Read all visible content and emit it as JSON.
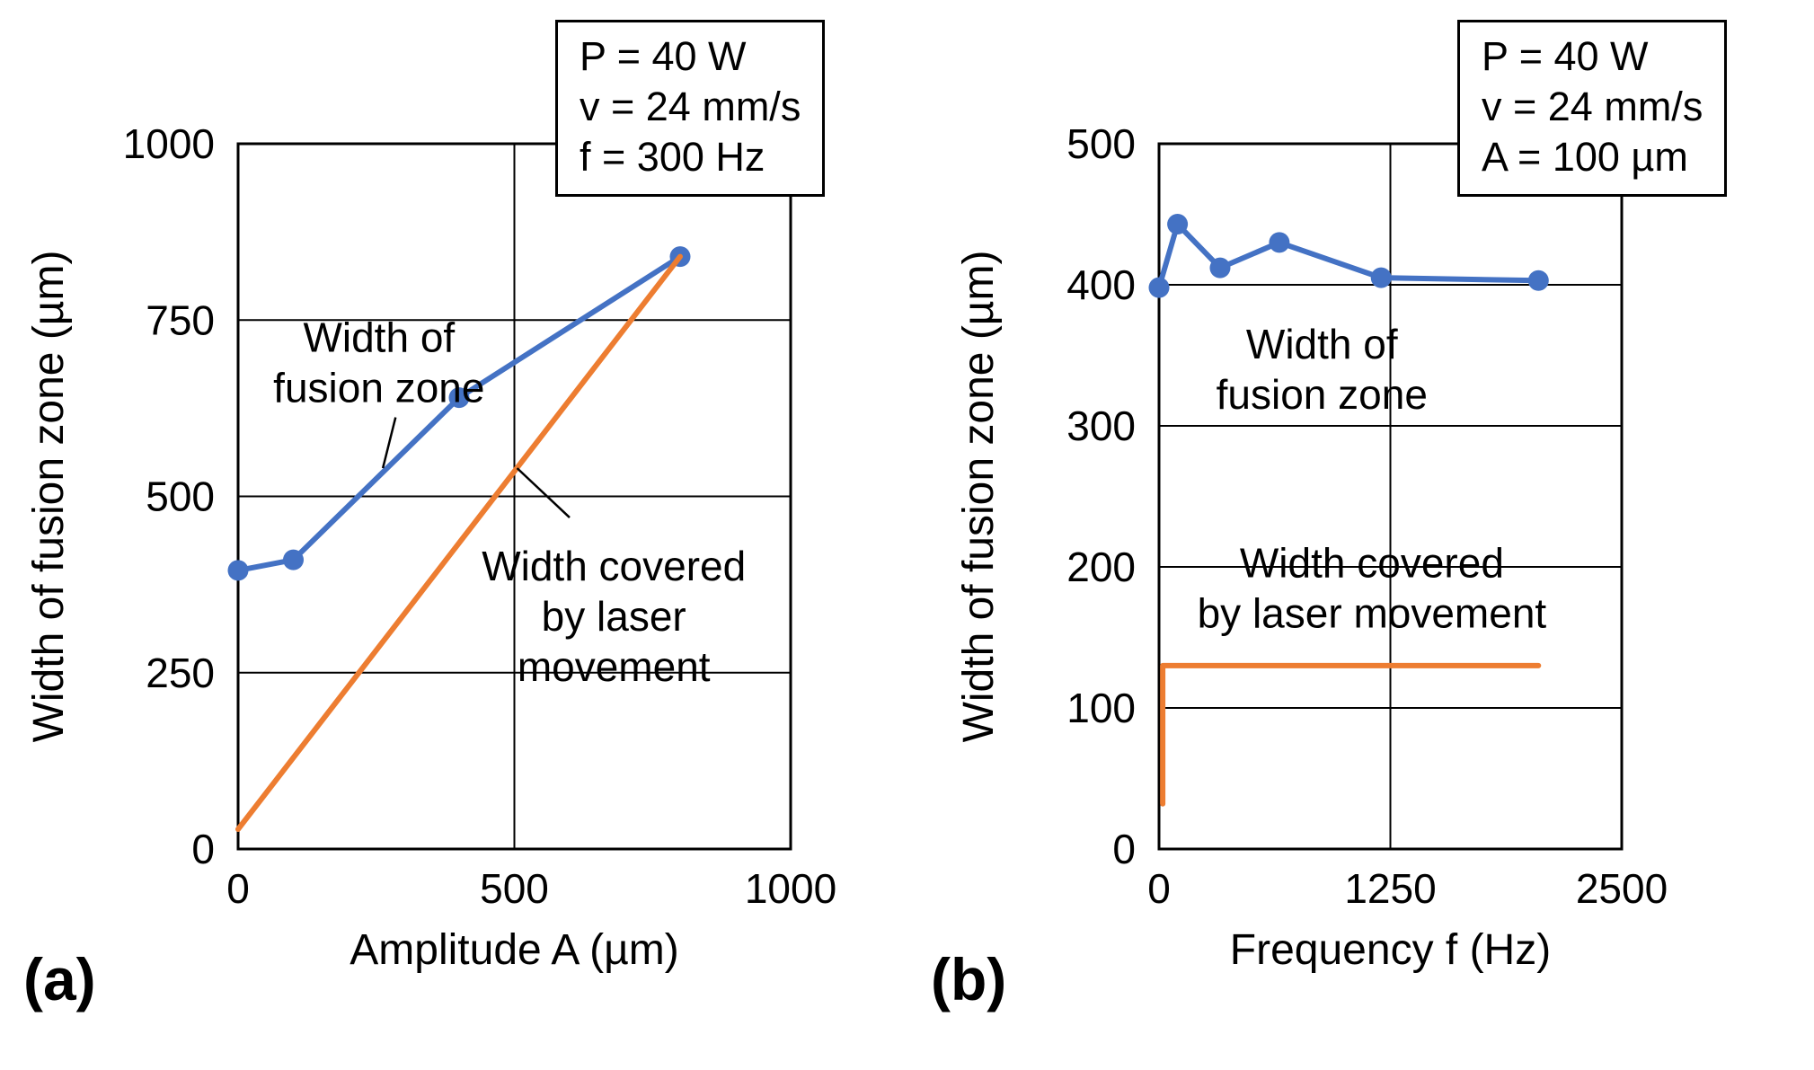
{
  "panels": [
    {
      "label": "(a)",
      "param_box": [
        "P = 40 W",
        "v = 24 mm/s",
        "f = 300 Hz"
      ]
    },
    {
      "label": "(b)",
      "param_box": [
        "P = 40 W",
        "v = 24 mm/s",
        "A = 100 µm"
      ]
    }
  ],
  "chart_data": [
    {
      "type": "line",
      "title": "",
      "xlabel": "Amplitude A (µm)",
      "ylabel": "Width of fusion zone (µm)",
      "xlim": [
        0,
        1000
      ],
      "ylim": [
        0,
        1000
      ],
      "xticks": [
        0,
        500,
        1000
      ],
      "yticks": [
        0,
        250,
        500,
        750,
        1000
      ],
      "grid": true,
      "legend_position": "none",
      "series": [
        {
          "name": "Width of fusion zone",
          "color": "#4472C4",
          "marker": true,
          "x": [
            0,
            100,
            400,
            800
          ],
          "y": [
            395,
            410,
            640,
            840
          ]
        },
        {
          "name": "Width covered by laser movement",
          "color": "#ED7D31",
          "marker": false,
          "x": [
            0,
            800
          ],
          "y": [
            28,
            840
          ]
        }
      ],
      "annotations": [
        {
          "lines": [
            "Width of",
            "fusion zone"
          ],
          "x": 255,
          "y": 690,
          "leader": [
            [
              285,
              612
            ],
            [
              262,
              540
            ]
          ]
        },
        {
          "lines": [
            "Width covered",
            "by laser",
            "movement"
          ],
          "x": 680,
          "y": 330,
          "leader": [
            [
              505,
              540
            ],
            [
              600,
              470
            ]
          ]
        }
      ]
    },
    {
      "type": "line",
      "title": "",
      "xlabel": "Frequency f (Hz)",
      "ylabel": "Width of fusion zone (µm)",
      "xlim": [
        0,
        2500
      ],
      "ylim": [
        0,
        500
      ],
      "xticks": [
        0,
        1250,
        2500
      ],
      "yticks": [
        0,
        100,
        200,
        300,
        400,
        500
      ],
      "grid": true,
      "legend_position": "none",
      "series": [
        {
          "name": "Width of fusion zone",
          "color": "#4472C4",
          "marker": true,
          "x": [
            0,
            100,
            330,
            650,
            1200,
            2050
          ],
          "y": [
            398,
            443,
            412,
            430,
            405,
            403
          ]
        },
        {
          "name": "Width covered by laser movement",
          "color": "#ED7D31",
          "marker": false,
          "x": [
            20,
            20,
            2050
          ],
          "y": [
            32,
            130,
            130
          ]
        }
      ],
      "annotations": [
        {
          "lines": [
            "Width of",
            "fusion zone"
          ],
          "x": 880,
          "y": 340,
          "leader": null
        },
        {
          "lines": [
            "Width covered",
            "by laser movement"
          ],
          "x": 1150,
          "y": 185,
          "leader": null
        }
      ]
    }
  ]
}
